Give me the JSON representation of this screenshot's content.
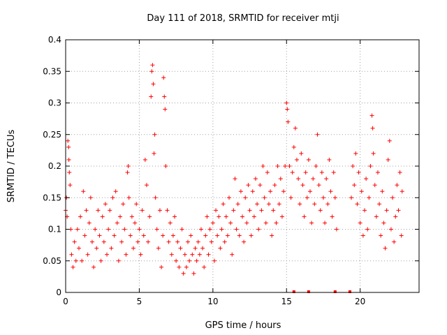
{
  "chart_data": {
    "type": "scatter",
    "title": "Day 111 of 2018, SRMTID for receiver mtji",
    "xlabel": "GPS time / hours",
    "ylabel": "SRMTID / TECUs",
    "xlim": [
      0,
      24
    ],
    "ylim": [
      0,
      0.4
    ],
    "x_ticks": [
      0,
      5,
      10,
      15,
      20
    ],
    "x_tick_labels": [
      "0",
      "5",
      "10",
      "15",
      "20"
    ],
    "y_ticks": [
      0,
      0.05,
      0.1,
      0.15,
      0.2,
      0.25,
      0.3,
      0.35,
      0.4
    ],
    "y_tick_labels": [
      "0",
      "0.05",
      "0.1",
      "0.15",
      "0.2",
      "0.25",
      "0.3",
      "0.35",
      "0.4"
    ],
    "grid": true,
    "marker": "plus",
    "color": "#ff0000",
    "series": [
      {
        "name": "SRMTID",
        "points": [
          [
            0.0,
            0.13
          ],
          [
            0.05,
            0.15
          ],
          [
            0.1,
            0.12
          ],
          [
            0.15,
            0.24
          ],
          [
            0.2,
            0.23
          ],
          [
            0.22,
            0.21
          ],
          [
            0.25,
            0.19
          ],
          [
            0.3,
            0.17
          ],
          [
            0.35,
            0.1
          ],
          [
            0.4,
            0.06
          ],
          [
            0.5,
            0.04
          ],
          [
            0.6,
            0.08
          ],
          [
            0.7,
            0.05
          ],
          [
            0.8,
            0.1
          ],
          [
            0.9,
            0.07
          ],
          [
            1.0,
            0.12
          ],
          [
            1.1,
            0.05
          ],
          [
            1.2,
            0.16
          ],
          [
            1.3,
            0.09
          ],
          [
            1.4,
            0.13
          ],
          [
            1.5,
            0.06
          ],
          [
            1.6,
            0.11
          ],
          [
            1.7,
            0.15
          ],
          [
            1.8,
            0.08
          ],
          [
            1.9,
            0.04
          ],
          [
            2.0,
            0.1
          ],
          [
            2.1,
            0.07
          ],
          [
            2.2,
            0.13
          ],
          [
            2.3,
            0.09
          ],
          [
            2.4,
            0.05
          ],
          [
            2.5,
            0.12
          ],
          [
            2.6,
            0.08
          ],
          [
            2.7,
            0.14
          ],
          [
            2.8,
            0.06
          ],
          [
            2.9,
            0.1
          ],
          [
            3.0,
            0.13
          ],
          [
            3.1,
            0.07
          ],
          [
            3.2,
            0.15
          ],
          [
            3.3,
            0.09
          ],
          [
            3.4,
            0.16
          ],
          [
            3.5,
            0.11
          ],
          [
            3.6,
            0.05
          ],
          [
            3.7,
            0.12
          ],
          [
            3.8,
            0.08
          ],
          [
            3.9,
            0.14
          ],
          [
            4.0,
            0.1
          ],
          [
            4.1,
            0.06
          ],
          [
            4.2,
            0.19
          ],
          [
            4.25,
            0.2
          ],
          [
            4.3,
            0.15
          ],
          [
            4.4,
            0.09
          ],
          [
            4.5,
            0.12
          ],
          [
            4.6,
            0.07
          ],
          [
            4.7,
            0.11
          ],
          [
            4.8,
            0.14
          ],
          [
            4.9,
            0.08
          ],
          [
            5.0,
            0.1
          ],
          [
            5.1,
            0.06
          ],
          [
            5.2,
            0.13
          ],
          [
            5.3,
            0.09
          ],
          [
            5.4,
            0.21
          ],
          [
            5.5,
            0.17
          ],
          [
            5.6,
            0.08
          ],
          [
            5.7,
            0.12
          ],
          [
            5.8,
            0.31
          ],
          [
            5.85,
            0.35
          ],
          [
            5.9,
            0.36
          ],
          [
            5.95,
            0.33
          ],
          [
            6.0,
            0.22
          ],
          [
            6.05,
            0.25
          ],
          [
            6.1,
            0.15
          ],
          [
            6.2,
            0.1
          ],
          [
            6.3,
            0.07
          ],
          [
            6.4,
            0.13
          ],
          [
            6.5,
            0.04
          ],
          [
            6.6,
            0.09
          ],
          [
            6.65,
            0.34
          ],
          [
            6.7,
            0.31
          ],
          [
            6.75,
            0.29
          ],
          [
            6.8,
            0.2
          ],
          [
            6.9,
            0.13
          ],
          [
            7.0,
            0.08
          ],
          [
            7.1,
            0.11
          ],
          [
            7.2,
            0.06
          ],
          [
            7.3,
            0.09
          ],
          [
            7.4,
            0.12
          ],
          [
            7.5,
            0.05
          ],
          [
            7.6,
            0.08
          ],
          [
            7.7,
            0.04
          ],
          [
            7.8,
            0.07
          ],
          [
            7.9,
            0.1
          ],
          [
            8.0,
            0.03
          ],
          [
            8.1,
            0.06
          ],
          [
            8.2,
            0.04
          ],
          [
            8.3,
            0.08
          ],
          [
            8.4,
            0.05
          ],
          [
            8.5,
            0.09
          ],
          [
            8.6,
            0.06
          ],
          [
            8.7,
            0.03
          ],
          [
            8.8,
            0.07
          ],
          [
            8.9,
            0.05
          ],
          [
            9.0,
            0.08
          ],
          [
            9.1,
            0.06
          ],
          [
            9.2,
            0.1
          ],
          [
            9.3,
            0.07
          ],
          [
            9.4,
            0.04
          ],
          [
            9.5,
            0.09
          ],
          [
            9.6,
            0.12
          ],
          [
            9.7,
            0.06
          ],
          [
            9.8,
            0.1
          ],
          [
            9.9,
            0.08
          ],
          [
            10.0,
            0.11
          ],
          [
            10.1,
            0.05
          ],
          [
            10.2,
            0.13
          ],
          [
            10.3,
            0.09
          ],
          [
            10.4,
            0.12
          ],
          [
            10.5,
            0.07
          ],
          [
            10.6,
            0.1
          ],
          [
            10.7,
            0.14
          ],
          [
            10.8,
            0.08
          ],
          [
            10.9,
            0.12
          ],
          [
            11.0,
            0.09
          ],
          [
            11.1,
            0.15
          ],
          [
            11.2,
            0.11
          ],
          [
            11.3,
            0.06
          ],
          [
            11.4,
            0.13
          ],
          [
            11.5,
            0.18
          ],
          [
            11.6,
            0.1
          ],
          [
            11.7,
            0.14
          ],
          [
            11.8,
            0.09
          ],
          [
            11.9,
            0.16
          ],
          [
            12.0,
            0.12
          ],
          [
            12.1,
            0.08
          ],
          [
            12.2,
            0.15
          ],
          [
            12.3,
            0.11
          ],
          [
            12.4,
            0.17
          ],
          [
            12.5,
            0.13
          ],
          [
            12.6,
            0.09
          ],
          [
            12.7,
            0.16
          ],
          [
            12.8,
            0.12
          ],
          [
            12.9,
            0.18
          ],
          [
            13.0,
            0.14
          ],
          [
            13.1,
            0.1
          ],
          [
            13.2,
            0.17
          ],
          [
            13.3,
            0.13
          ],
          [
            13.4,
            0.2
          ],
          [
            13.5,
            0.15
          ],
          [
            13.6,
            0.11
          ],
          [
            13.7,
            0.19
          ],
          [
            13.8,
            0.14
          ],
          [
            13.9,
            0.16
          ],
          [
            14.0,
            0.09
          ],
          [
            14.1,
            0.13
          ],
          [
            14.2,
            0.17
          ],
          [
            14.3,
            0.11
          ],
          [
            14.4,
            0.2
          ],
          [
            14.5,
            0.14
          ],
          [
            14.6,
            0.18
          ],
          [
            14.7,
            0.12
          ],
          [
            14.8,
            0.16
          ],
          [
            14.9,
            0.2
          ],
          [
            15.0,
            0.3
          ],
          [
            15.05,
            0.29
          ],
          [
            15.1,
            0.27
          ],
          [
            15.2,
            0.2
          ],
          [
            15.3,
            0.15
          ],
          [
            15.4,
            0.19
          ],
          [
            15.5,
            0.23
          ],
          [
            15.6,
            0.26
          ],
          [
            15.7,
            0.21
          ],
          [
            15.8,
            0.18
          ],
          [
            15.9,
            0.14
          ],
          [
            16.0,
            0.22
          ],
          [
            16.1,
            0.17
          ],
          [
            16.2,
            0.12
          ],
          [
            16.3,
            0.19
          ],
          [
            16.4,
            0.15
          ],
          [
            16.5,
            0.21
          ],
          [
            16.6,
            0.16
          ],
          [
            16.7,
            0.11
          ],
          [
            16.8,
            0.18
          ],
          [
            16.9,
            0.14
          ],
          [
            17.0,
            0.2
          ],
          [
            17.1,
            0.25
          ],
          [
            17.2,
            0.17
          ],
          [
            17.3,
            0.13
          ],
          [
            17.4,
            0.19
          ],
          [
            17.5,
            0.15
          ],
          [
            17.6,
            0.11
          ],
          [
            17.7,
            0.18
          ],
          [
            17.8,
            0.14
          ],
          [
            17.9,
            0.21
          ],
          [
            18.0,
            0.16
          ],
          [
            18.1,
            0.12
          ],
          [
            18.2,
            0.19
          ],
          [
            18.3,
            0.15
          ],
          [
            18.4,
            0.1
          ],
          [
            19.4,
            0.15
          ],
          [
            19.5,
            0.2
          ],
          [
            19.6,
            0.17
          ],
          [
            19.7,
            0.22
          ],
          [
            19.8,
            0.14
          ],
          [
            19.9,
            0.19
          ],
          [
            20.0,
            0.11
          ],
          [
            20.1,
            0.16
          ],
          [
            20.2,
            0.09
          ],
          [
            20.3,
            0.13
          ],
          [
            20.4,
            0.18
          ],
          [
            20.5,
            0.1
          ],
          [
            20.6,
            0.15
          ],
          [
            20.7,
            0.2
          ],
          [
            20.8,
            0.28
          ],
          [
            20.85,
            0.26
          ],
          [
            20.9,
            0.22
          ],
          [
            21.0,
            0.17
          ],
          [
            21.1,
            0.12
          ],
          [
            21.2,
            0.19
          ],
          [
            21.3,
            0.14
          ],
          [
            21.4,
            0.09
          ],
          [
            21.5,
            0.16
          ],
          [
            21.6,
            0.11
          ],
          [
            21.7,
            0.07
          ],
          [
            21.8,
            0.13
          ],
          [
            21.9,
            0.21
          ],
          [
            22.0,
            0.24
          ],
          [
            22.1,
            0.1
          ],
          [
            22.2,
            0.15
          ],
          [
            22.3,
            0.08
          ],
          [
            22.4,
            0.12
          ],
          [
            22.5,
            0.17
          ],
          [
            22.6,
            0.13
          ],
          [
            22.7,
            0.19
          ],
          [
            22.8,
            0.09
          ],
          [
            22.85,
            0.16
          ]
        ]
      }
    ],
    "gap_markers_x": [
      15.5,
      16.5,
      18.3,
      19.3
    ]
  }
}
